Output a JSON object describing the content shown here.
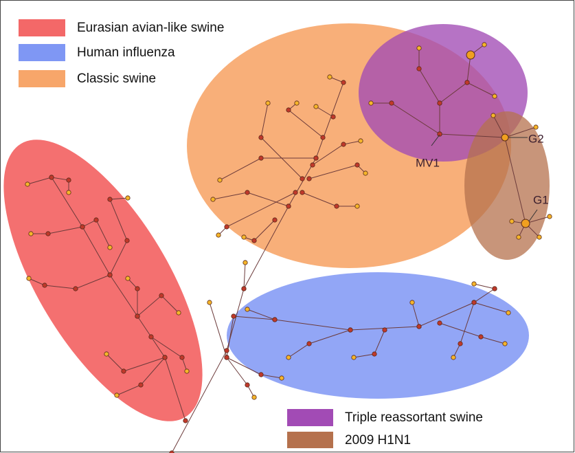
{
  "legend": {
    "items": [
      {
        "label": "Eurasian avian-like swine",
        "color": "#f36868"
      },
      {
        "label": "Human influenza",
        "color": "#7f97f4"
      },
      {
        "label": "Classic swine",
        "color": "#f7a66a"
      },
      {
        "label": "Triple reassortant  swine",
        "color": "#a24bb5"
      },
      {
        "label": "2009 H1N1",
        "color": "#b5714d"
      }
    ]
  },
  "annotations": [
    "MV1",
    "G2",
    "G1"
  ]
}
